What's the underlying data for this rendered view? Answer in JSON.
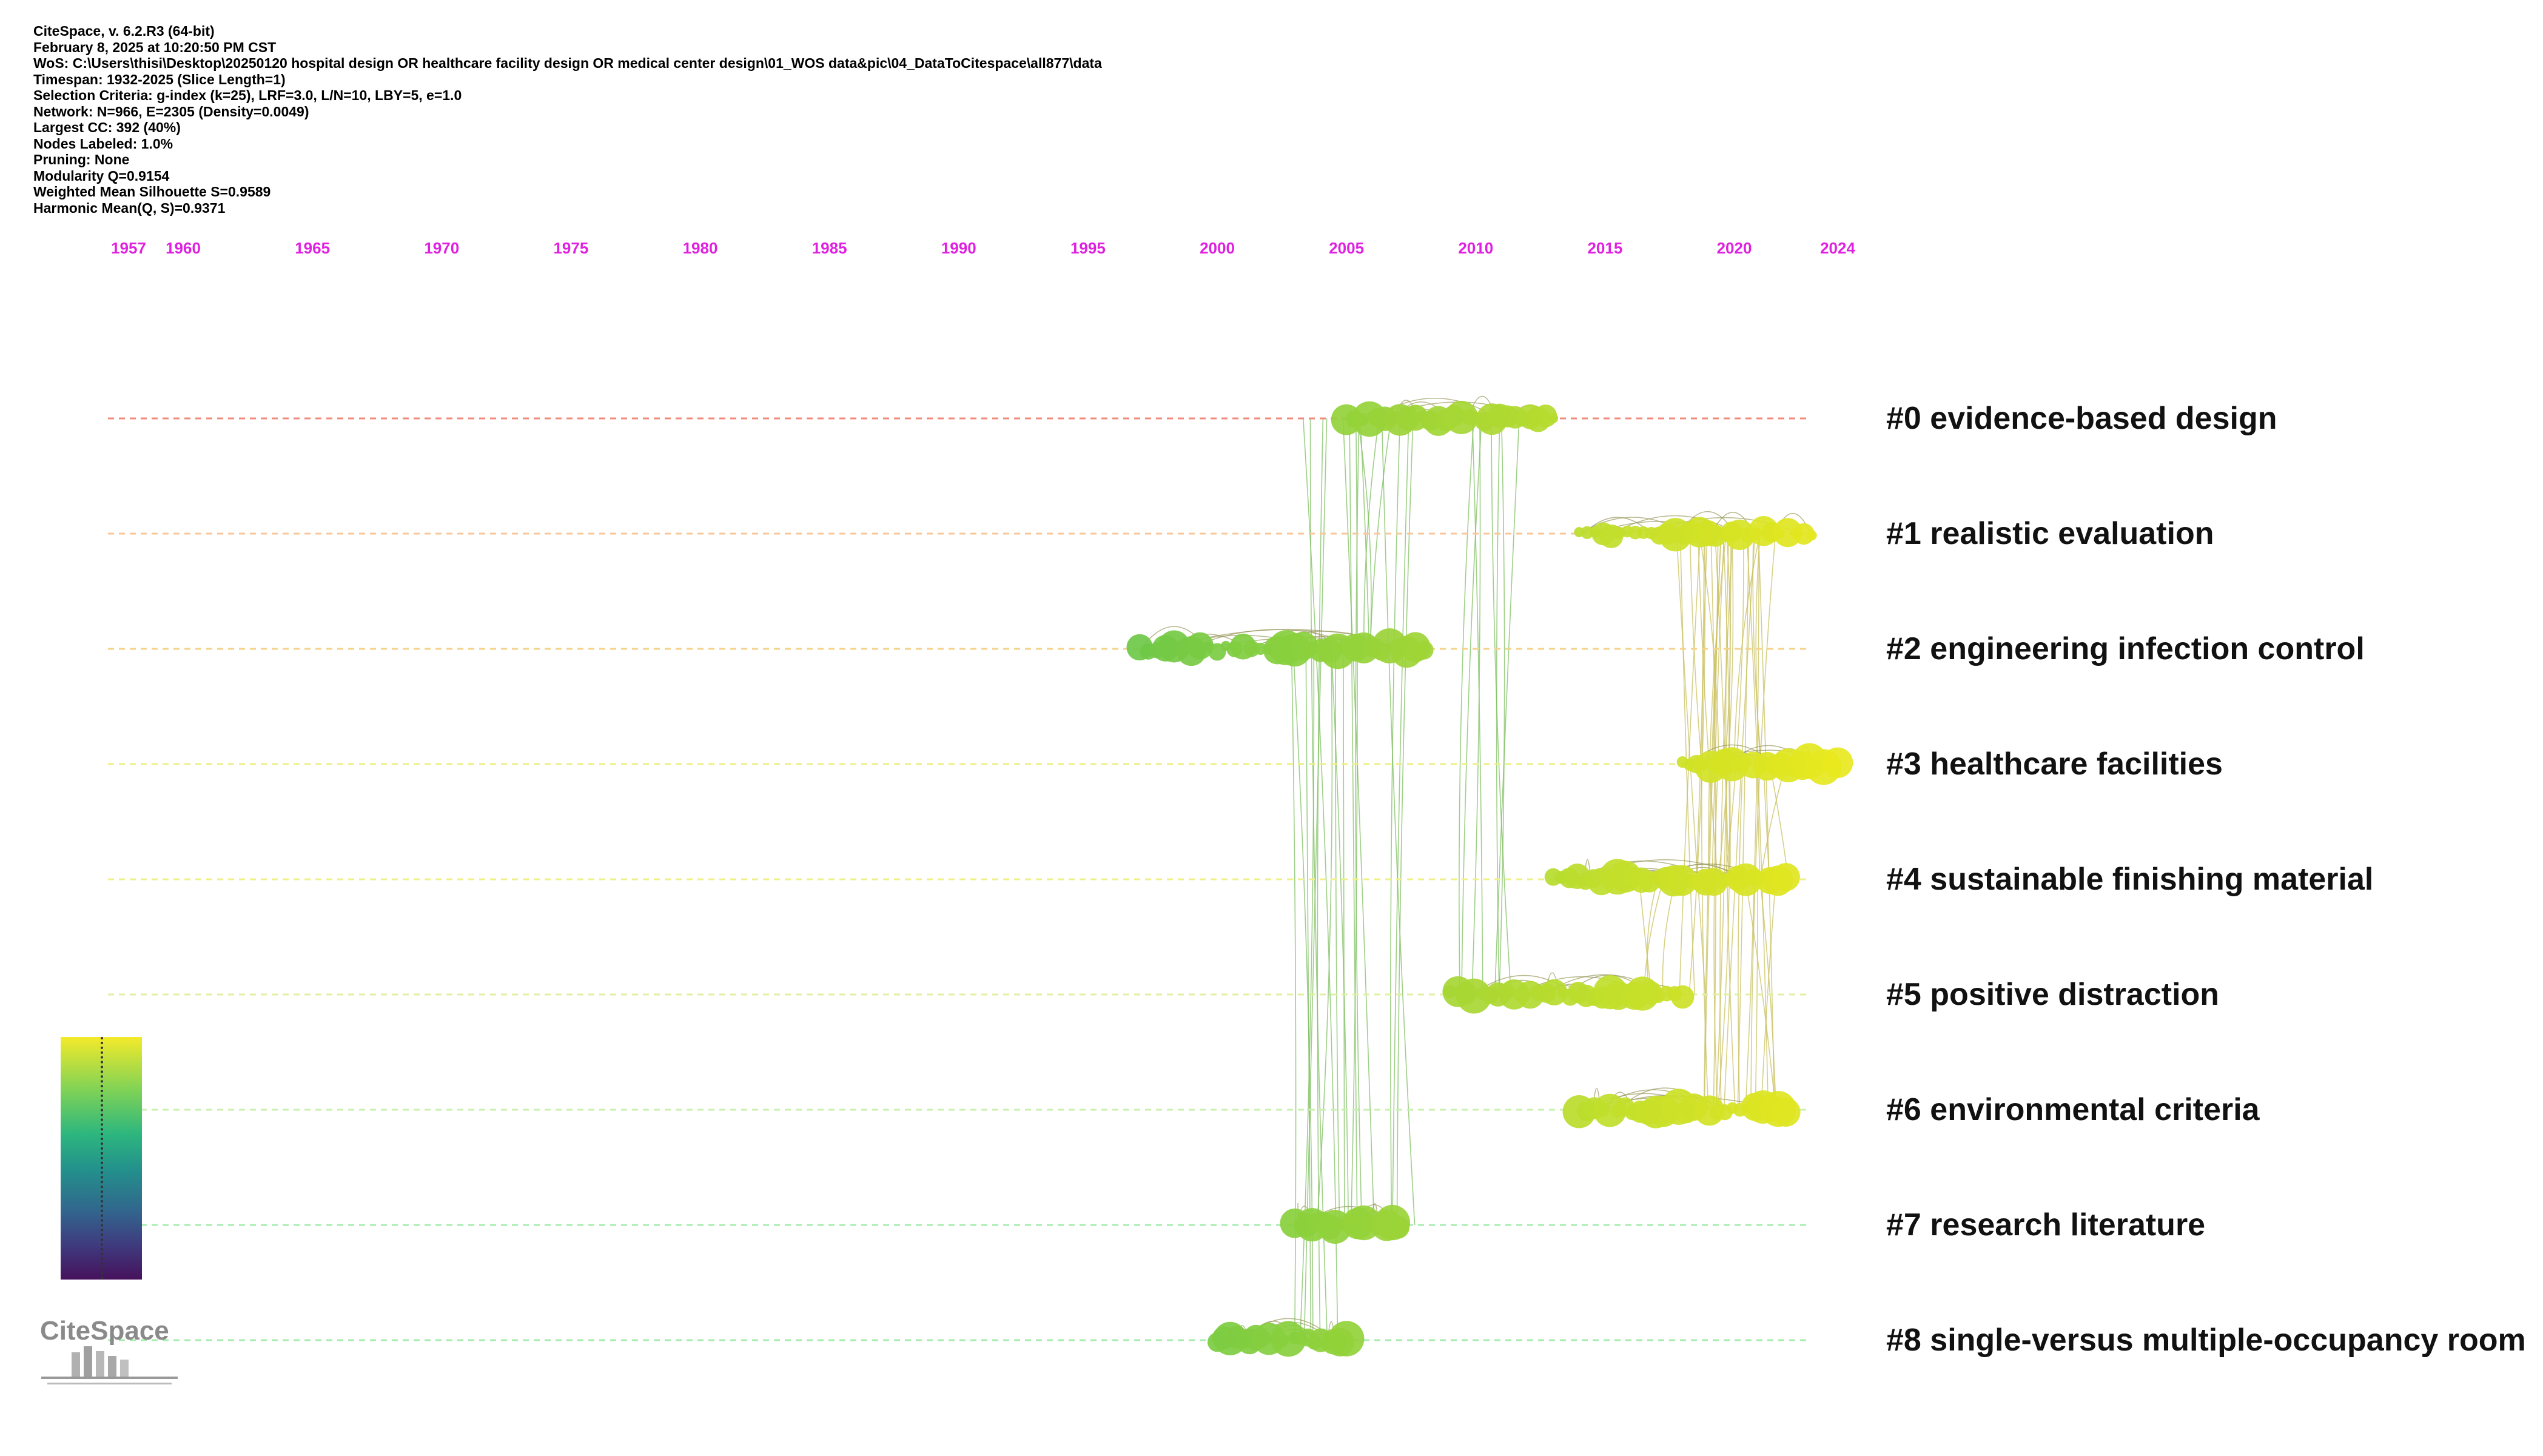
{
  "info_lines": [
    "CiteSpace, v. 6.2.R3 (64-bit)",
    "February 8, 2025 at 10:20:50 PM CST",
    "WoS: C:\\Users\\thisi\\Desktop\\20250120 hospital design OR healthcare facility design OR medical center design\\01_WOS data&pic\\04_DataToCitespace\\all877\\data",
    "Timespan: 1932-2025 (Slice Length=1)",
    "Selection Criteria: g-index (k=25), LRF=3.0, L/N=10, LBY=5, e=1.0",
    "Network: N=966, E=2305 (Density=0.0049)",
    "Largest CC: 392 (40%)",
    "Nodes Labeled: 1.0%",
    "Pruning: None",
    "Modularity Q=0.9154",
    "Weighted Mean Silhouette S=0.9589",
    "Harmonic Mean(Q, S)=0.9371"
  ],
  "chart_data": {
    "type": "timeline",
    "x_ticks": [
      1957,
      1960,
      1965,
      1970,
      1975,
      1980,
      1985,
      1990,
      1995,
      2000,
      2005,
      2010,
      2015,
      2020,
      2024
    ],
    "clusters": [
      {
        "id": 0,
        "label": "#0 evidence-based design",
        "start": 2005,
        "end": 2013,
        "line_color": "#f08a7a"
      },
      {
        "id": 1,
        "label": "#1 realistic evaluation",
        "start": 2014,
        "end": 2023,
        "line_color": "#f7c79a"
      },
      {
        "id": 2,
        "label": "#2 engineering infection control",
        "start": 1997,
        "end": 2008,
        "line_color": "#f5d28a"
      },
      {
        "id": 3,
        "label": "#3 healthcare facilities",
        "start": 2018,
        "end": 2024,
        "line_color": "#eeee8a"
      },
      {
        "id": 4,
        "label": "#4 sustainable finishing material",
        "start": 2013,
        "end": 2022,
        "line_color": "#eef08a"
      },
      {
        "id": 5,
        "label": "#5 positive distraction",
        "start": 2009,
        "end": 2018,
        "line_color": "#e0f0a0"
      },
      {
        "id": 6,
        "label": "#6 environmental criteria",
        "start": 2014,
        "end": 2022,
        "line_color": "#c8f0b0"
      },
      {
        "id": 7,
        "label": "#7 research literature",
        "start": 2003,
        "end": 2007,
        "line_color": "#a8ecb0"
      },
      {
        "id": 8,
        "label": "#8 single-versus multiple-occupancy room",
        "start": 2000,
        "end": 2005,
        "line_color": "#a8ecb0"
      }
    ]
  },
  "logo_text": "CiteSpace"
}
